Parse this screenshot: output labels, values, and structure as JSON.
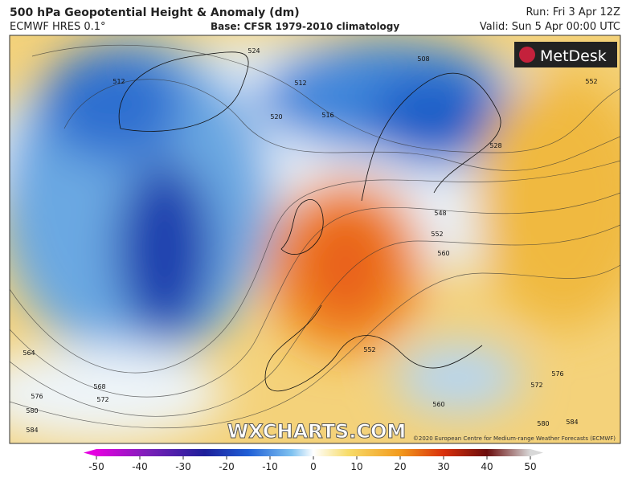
{
  "header": {
    "title": "500 hPa Geopotential Height & Anomaly (dm)",
    "model": "ECMWF HRES 0.1°",
    "base": "Base: CFSR 1979-2010 climatology",
    "run": "Run: Fri 3 Apr 12Z",
    "valid": "Valid: Sun 5 Apr 00:00 UTC"
  },
  "logo": "MetDesk",
  "watermark": "WXCHARTS.COM",
  "copyright": "©2020 European Centre for Medium-range Weather Forecasts (ECMWF)",
  "contour_labels": [
    "524",
    "512",
    "512",
    "520",
    "516",
    "508",
    "528",
    "548",
    "552",
    "560",
    "552",
    "564",
    "568",
    "572",
    "576",
    "580",
    "584",
    "560",
    "572",
    "576",
    "580",
    "584",
    "552"
  ],
  "colorbar": {
    "range": [
      -50,
      50
    ],
    "ticks": [
      -50,
      -40,
      -30,
      -20,
      -10,
      0,
      10,
      20,
      30,
      40,
      50
    ]
  }
}
